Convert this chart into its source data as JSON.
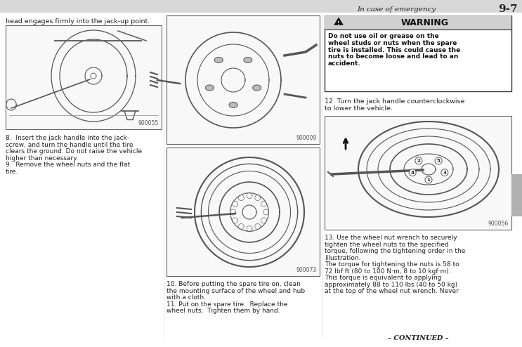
{
  "page_header_text": "In case of emergency",
  "page_number": "9-7",
  "bg_color": "#ffffff",
  "header_line_color": "#c0c0c0",
  "col1_intro_text": "head engages firmly into the jack-up point.",
  "img1_label": "900055",
  "col2_img_top_label": "900009",
  "col2_img_bot_label": "900073",
  "warning_title": "WARNING",
  "warning_bold_lines": [
    "Do not use oil or grease on the",
    "wheel studs or nuts when the spare",
    "tire is installed. This could cause the",
    "nuts to become loose and lead to an",
    "accident."
  ],
  "col3_step12_lines": [
    "12. Turn the jack handle counterclockwise",
    "to lower the vehicle."
  ],
  "col3_img_label": "900056",
  "col3_step13_lines": [
    "13. Use the wheel nut wrench to securely",
    "tighten the wheel nuts to the specified",
    "torque, following the tightening order in the",
    "illustration.",
    "The torque for tightening the nuts is 58 to",
    "72 lbf·ft (80 to 100 N·m, 8 to 10 kgf·m).",
    "This torque is equivalent to applying",
    "approximately 88 to 110 lbs (40 to 50 kg)",
    "at the top of the wheel nut wrench. Never"
  ],
  "col1_step8_lines": [
    "8.  Insert the jack handle into the jack-",
    "screw, and turn the handle until the tire",
    "clears the ground. Do not raise the vehicle",
    "higher than necessary.",
    "9.  Remove the wheel nuts and the flat",
    "tire."
  ],
  "col2_step10_lines": [
    "10. Before putting the spare tire on, clean",
    "the mounting surface of the wheel and hub",
    "with a cloth.",
    "11. Put on the spare tire.  Replace the",
    "wheel nuts.  Tighten them by hand."
  ],
  "footer_text": "– CONTINUED –",
  "sidebar_color": "#b0b0b0"
}
